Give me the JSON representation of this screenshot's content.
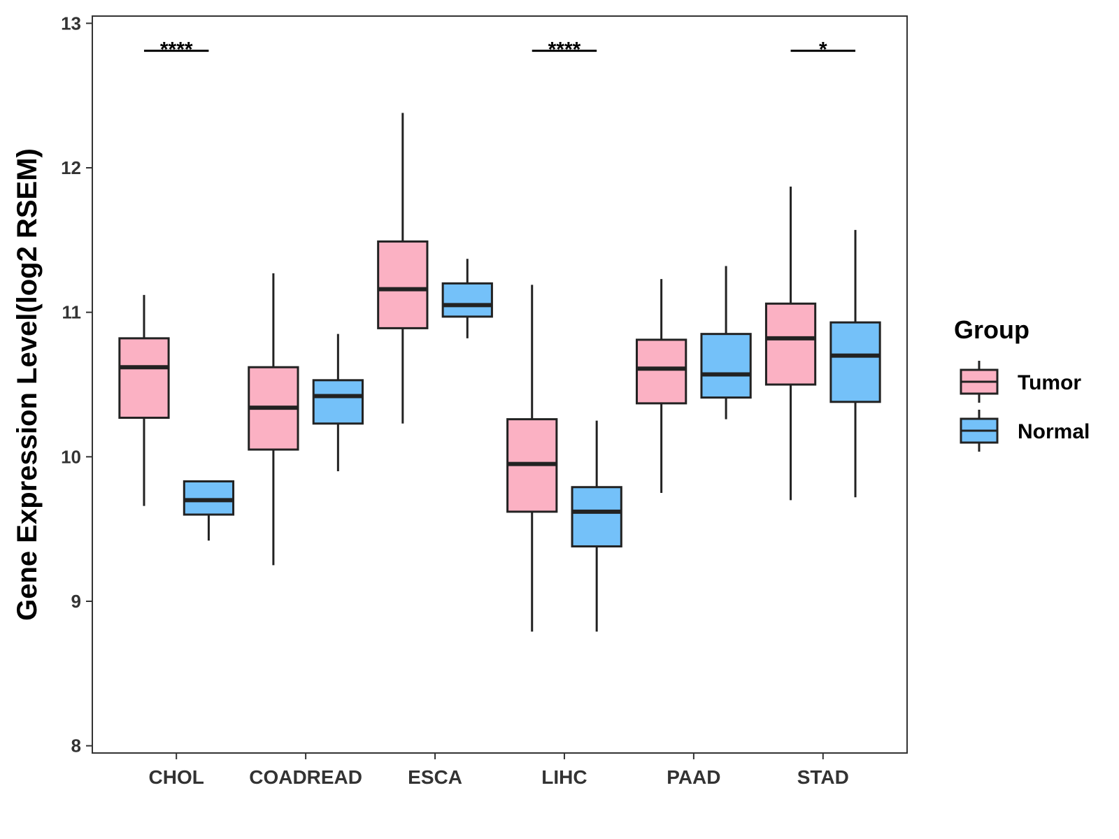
{
  "chart_data": {
    "type": "boxplot",
    "title": "",
    "xlabel": "",
    "ylabel": "Gene Expression Level(log2 RSEM)",
    "ylim": [
      7.95,
      13.05
    ],
    "yticks": [
      8,
      9,
      10,
      11,
      12,
      13
    ],
    "grid": false,
    "categories": [
      "CHOL",
      "COADREAD",
      "ESCA",
      "LIHC",
      "PAAD",
      "STAD"
    ],
    "legend": {
      "title": "Group",
      "position": "right"
    },
    "series": [
      {
        "name": "Tumor",
        "color": "#fbb1c3",
        "boxes": [
          {
            "whisker_low": 9.66,
            "q1": 10.27,
            "median": 10.62,
            "q3": 10.82,
            "whisker_high": 11.12
          },
          {
            "whisker_low": 9.25,
            "q1": 10.05,
            "median": 10.34,
            "q3": 10.62,
            "whisker_high": 11.27
          },
          {
            "whisker_low": 10.23,
            "q1": 10.89,
            "median": 11.16,
            "q3": 11.49,
            "whisker_high": 12.38
          },
          {
            "whisker_low": 8.79,
            "q1": 9.62,
            "median": 9.95,
            "q3": 10.26,
            "whisker_high": 11.19
          },
          {
            "whisker_low": 9.75,
            "q1": 10.37,
            "median": 10.61,
            "q3": 10.81,
            "whisker_high": 11.23
          },
          {
            "whisker_low": 9.7,
            "q1": 10.5,
            "median": 10.82,
            "q3": 11.06,
            "whisker_high": 11.87
          }
        ]
      },
      {
        "name": "Normal",
        "color": "#74c1f9",
        "boxes": [
          {
            "whisker_low": 9.42,
            "q1": 9.6,
            "median": 9.7,
            "q3": 9.83,
            "whisker_high": 9.83
          },
          {
            "whisker_low": 9.9,
            "q1": 10.23,
            "median": 10.42,
            "q3": 10.53,
            "whisker_high": 10.85
          },
          {
            "whisker_low": 10.82,
            "q1": 10.97,
            "median": 11.05,
            "q3": 11.2,
            "whisker_high": 11.37
          },
          {
            "whisker_low": 8.79,
            "q1": 9.38,
            "median": 9.62,
            "q3": 9.79,
            "whisker_high": 10.25
          },
          {
            "whisker_low": 10.26,
            "q1": 10.41,
            "median": 10.57,
            "q3": 10.85,
            "whisker_high": 11.32
          },
          {
            "whisker_low": 9.72,
            "q1": 10.38,
            "median": 10.7,
            "q3": 10.93,
            "whisker_high": 11.57
          }
        ]
      }
    ],
    "annotations": [
      {
        "category": "CHOL",
        "label": "****",
        "y": 12.81
      },
      {
        "category": "LIHC",
        "label": "****",
        "y": 12.81
      },
      {
        "category": "STAD",
        "label": "*",
        "y": 12.81
      }
    ]
  }
}
